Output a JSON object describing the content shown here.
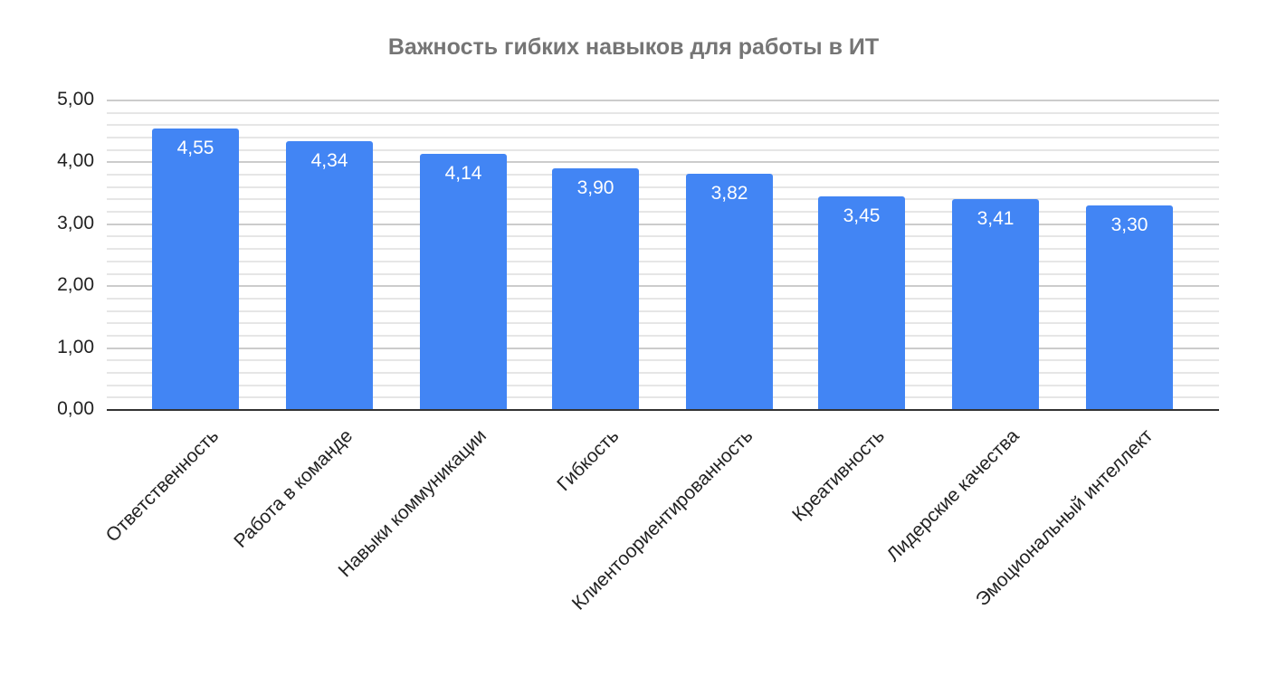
{
  "chart_data": {
    "type": "bar",
    "title": "Важность гибких навыков для работы в ИТ",
    "xlabel": "",
    "ylabel": "",
    "ylim": [
      0,
      5
    ],
    "yticks": [
      "0,00",
      "1,00",
      "2,00",
      "3,00",
      "4,00",
      "5,00"
    ],
    "grid": true,
    "legend": "none",
    "categories": [
      "Ответственность",
      "Работа в команде",
      "Навыки коммуникации",
      "Гибкость",
      "Клиентоориентированность",
      "Креативность",
      "Лидерские качества",
      "Эмоциональный интеллект"
    ],
    "values": [
      4.55,
      4.34,
      4.14,
      3.9,
      3.82,
      3.45,
      3.41,
      3.3
    ],
    "value_labels": [
      "4,55",
      "4,34",
      "4,14",
      "3,90",
      "3,82",
      "3,45",
      "3,41",
      "3,30"
    ],
    "bar_color": "#4285f4"
  },
  "title": "Важность гибких навыков для работы в ИТ",
  "y_axis": {
    "ticks": [
      "5,00",
      "4,00",
      "3,00",
      "2,00",
      "1,00",
      "0,00"
    ]
  },
  "bars": [
    {
      "label": "Ответственность",
      "value_label": "4,55"
    },
    {
      "label": "Работа в команде",
      "value_label": "4,34"
    },
    {
      "label": "Навыки коммуникации",
      "value_label": "4,14"
    },
    {
      "label": "Гибкость",
      "value_label": "3,90"
    },
    {
      "label": "Клиентоориентированность",
      "value_label": "3,82"
    },
    {
      "label": "Креативность",
      "value_label": "3,45"
    },
    {
      "label": "Лидерские качества",
      "value_label": "3,41"
    },
    {
      "label": "Эмоциональный интеллект",
      "value_label": "3,30"
    }
  ]
}
